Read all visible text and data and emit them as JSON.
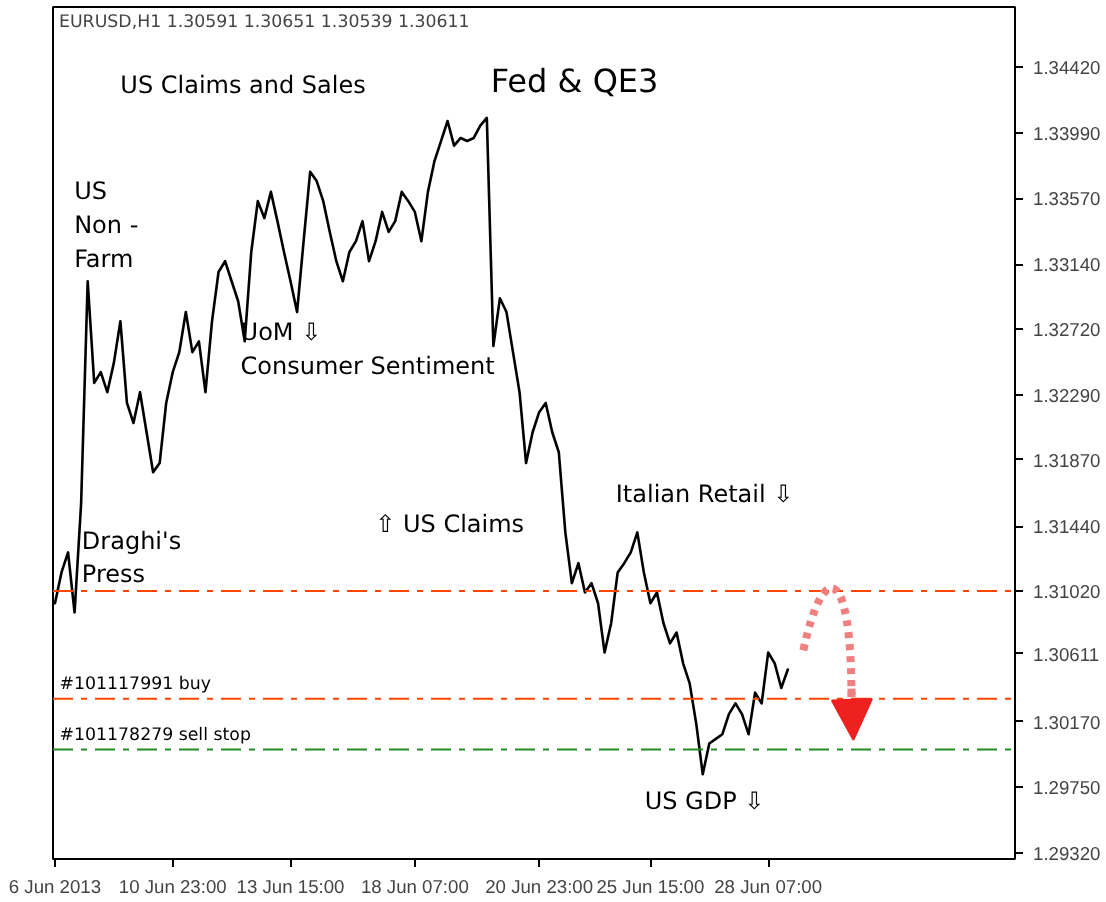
{
  "chart_data": {
    "type": "line",
    "title": "EURUSD,H1  1.30591 1.30651 1.30539 1.30611",
    "categories": [
      "6 Jun 2013",
      null,
      null,
      null,
      null,
      null,
      null,
      null,
      null,
      null,
      null,
      null,
      null,
      null,
      null,
      null,
      null,
      null,
      "10 Jun 23:00",
      null,
      null,
      null,
      null,
      null,
      null,
      null,
      null,
      null,
      null,
      null,
      null,
      null,
      null,
      null,
      null,
      null,
      "13 Jun 15:00",
      null,
      null,
      null,
      null,
      null,
      null,
      null,
      null,
      null,
      null,
      null,
      null,
      null,
      null,
      null,
      null,
      null,
      null,
      "18 Jun 07:00",
      null,
      null,
      null,
      null,
      null,
      null,
      null,
      null,
      null,
      null,
      null,
      null,
      null,
      null,
      null,
      null,
      null,
      null,
      "20 Jun 23:00",
      null,
      null,
      null,
      null,
      null,
      null,
      null,
      null,
      null,
      null,
      null,
      null,
      null,
      null,
      null,
      null,
      "25 Jun 15:00",
      null,
      null,
      null,
      null,
      null,
      null,
      null,
      null,
      null,
      null,
      null,
      null,
      null,
      null,
      null,
      null,
      null,
      "28 Jun 07:00",
      null,
      null,
      null
    ],
    "series": [
      {
        "color": "#000000",
        "values": [
          1.3094,
          1.3114,
          1.3127,
          1.3088,
          1.3159,
          1.3303,
          1.3237,
          1.3244,
          1.3231,
          1.325,
          1.3277,
          1.3224,
          1.3211,
          1.3231,
          1.3205,
          1.3179,
          1.3185,
          1.3224,
          1.3244,
          1.3257,
          1.3283,
          1.3257,
          1.3264,
          1.3231,
          1.3277,
          1.3309,
          1.3316,
          1.3303,
          1.329,
          1.3264,
          1.3322,
          1.3355,
          1.3344,
          1.3361,
          1.3342,
          1.3322,
          1.3303,
          1.3283,
          1.3329,
          1.3374,
          1.3368,
          1.3355,
          1.3335,
          1.3316,
          1.3303,
          1.3322,
          1.3329,
          1.3342,
          1.3316,
          1.3329,
          1.3348,
          1.3335,
          1.3342,
          1.3361,
          1.3355,
          1.3348,
          1.3329,
          1.3361,
          1.3381,
          1.3394,
          1.3407,
          1.3391,
          1.3396,
          1.3394,
          1.3396,
          1.3404,
          1.3409,
          1.3261,
          1.3292,
          1.3283,
          1.3257,
          1.3231,
          1.3185,
          1.3205,
          1.3218,
          1.3224,
          1.3205,
          1.3192,
          1.314,
          1.3107,
          1.312,
          1.3101,
          1.3107,
          1.3094,
          1.3062,
          1.3081,
          1.3114,
          1.312,
          1.3127,
          1.314,
          1.3114,
          1.3094,
          1.3101,
          1.3081,
          1.3068,
          1.3075,
          1.3055,
          1.3042,
          1.3016,
          1.2983,
          1.3003,
          1.3006,
          1.3009,
          1.3022,
          1.3029,
          1.3022,
          1.3009,
          1.3036,
          1.3029,
          1.3062,
          1.3055,
          1.3039,
          1.3051
        ]
      }
    ],
    "ylim": [
      1.2928,
      1.3481
    ],
    "yticks": [
      {
        "value": 1.2932,
        "label": "1.29320"
      },
      {
        "value": 1.2975,
        "label": "1.29750"
      },
      {
        "value": 1.3017,
        "label": "1.30170"
      },
      {
        "value": 1.30611,
        "label": "1.30611"
      },
      {
        "value": 1.3102,
        "label": "1.31020"
      },
      {
        "value": 1.3144,
        "label": "1.31440"
      },
      {
        "value": 1.3187,
        "label": "1.31870"
      },
      {
        "value": 1.3229,
        "label": "1.32290"
      },
      {
        "value": 1.3272,
        "label": "1.32720"
      },
      {
        "value": 1.3314,
        "label": "1.33140"
      },
      {
        "value": 1.3357,
        "label": "1.33570"
      },
      {
        "value": 1.3399,
        "label": "1.33990"
      },
      {
        "value": 1.3442,
        "label": "1.34420"
      }
    ],
    "grid": false,
    "marker": "none",
    "line_style": "solid",
    "ref_lines": [
      {
        "axis": "y",
        "value": 1.3102,
        "label": null,
        "color": "#ff4500",
        "line_style": "dashdot"
      },
      {
        "axis": "y",
        "value": 1.3032,
        "label": "#101117991 buy",
        "color": "#ff4500",
        "line_style": "dashdot"
      },
      {
        "axis": "y",
        "value": 1.2999,
        "label": "#101178279 sell stop",
        "color": "#228b22",
        "line_style": "dashdot"
      }
    ],
    "annotations": [
      "US Claims and Sales",
      "Fed & QE3",
      "US\nNon -\nFarm",
      "UoM ⇩\nConsumer Sentiment",
      "⇧ US Claims",
      "Italian Retail ⇩",
      "Draghi's\nPress",
      "US GDP ⇩"
    ]
  }
}
